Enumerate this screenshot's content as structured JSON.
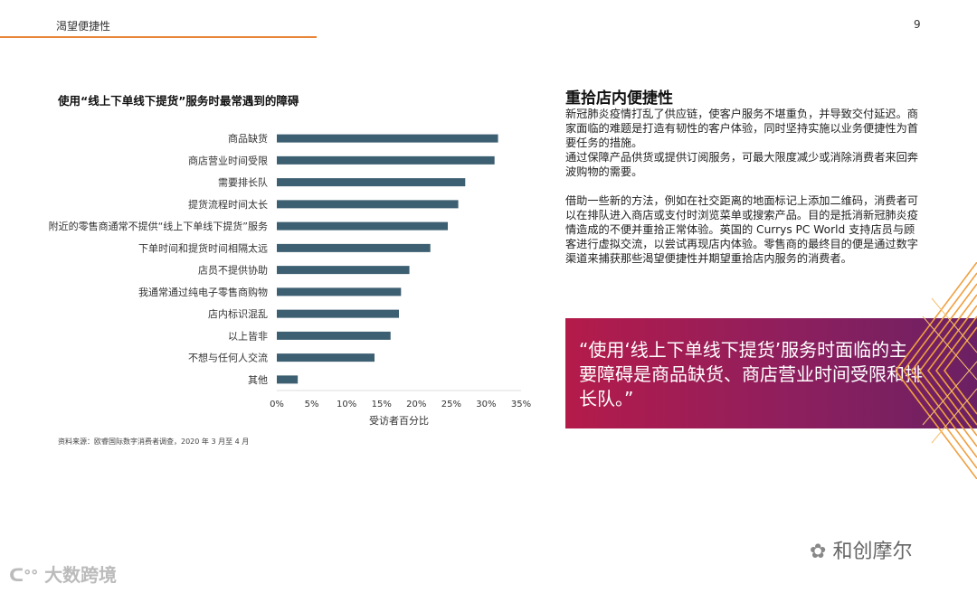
{
  "header": {
    "title": "渴望便捷性",
    "page_number": "9"
  },
  "chart_title": "使用“线上下单线下提货”服务时最常遇到的障碍",
  "chart_data": {
    "type": "bar",
    "orientation": "horizontal",
    "categories": [
      "商品缺货",
      "商店营业时间受限",
      "需要排长队",
      "提货流程时间太长",
      "附近的零售商通常不提供“线上下单线下提货”服务",
      "下单时间和提货时间相隔太远",
      "店员不提供协助",
      "我通常通过纯电子零售商购物",
      "店内标识混乱",
      "以上皆非",
      "不想与任何人交流",
      "其他"
    ],
    "values": [
      31.7,
      31.2,
      27.0,
      26.0,
      24.5,
      22.0,
      19.0,
      17.8,
      17.5,
      16.3,
      14.0,
      3.0
    ],
    "xticks": [
      "0%",
      "5%",
      "10%",
      "15%",
      "20%",
      "25%",
      "30%",
      "35%"
    ],
    "xlim": [
      0,
      35
    ],
    "xlabel": "受访者百分比",
    "bar_color": "#3d5f72",
    "grid": false
  },
  "source": "资料来源：欧睿国际数字消费者调查，2020 年 3 月至 4 月",
  "right": {
    "title": "重拾店内便捷性",
    "para1": "新冠肺炎疫情打乱了供应链，使客户服务不堪重负，并导致交付延迟。商家面临的难题是打造有韧性的客户体验，同时坚持实施以业务便捷性为首要任务的措施。",
    "para2": "通过保障产品供货或提供订阅服务，可最大限度减少或消除消费者来回奔波购物的需要。",
    "para3": "借助一些新的方法，例如在社交距离的地面标记上添加二维码，消费者可以在排队进入商店或支付时浏览菜单或搜索产品。目的是抵消新冠肺炎疫情造成的不便并重拾正常体验。英国的 Currys PC World 支持店员与顾客进行虚拟交流，以尝试再现店内体验。零售商的最终目的便是通过数字渠道来捕获那些渴望便捷性并期望重拾店内服务的消费者。"
  },
  "quote": "“使用‘线上下单线下提货’服务时面临的主要障碍是商品缺货、商店营业时间受限和排长队。”",
  "watermarks": {
    "left": "大数跨境",
    "right": "和创摩尔"
  },
  "colors": {
    "accent": "#e8873a",
    "quote_bg": "#a0194f"
  }
}
